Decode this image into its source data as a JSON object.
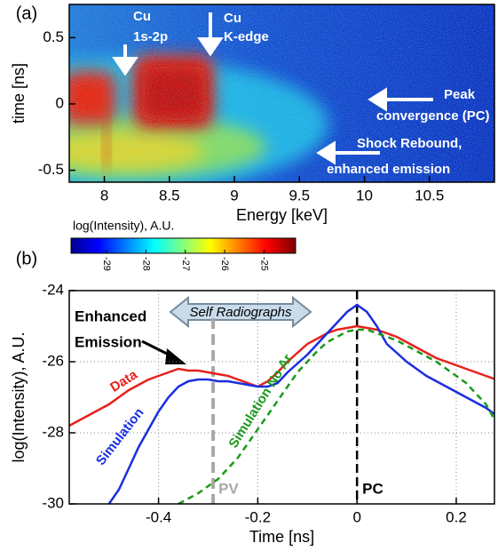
{
  "chart_data": [
    {
      "type": "heatmap",
      "label": "(a)",
      "xlabel": "Energy [keV]",
      "ylabel": "time [ns]",
      "xlim": [
        7.73,
        11.0
      ],
      "xticks": [
        8,
        8.5,
        9,
        9.5,
        10,
        10.5
      ],
      "ylim": [
        -0.59,
        0.75
      ],
      "yticks": [
        -0.5,
        0,
        0.5
      ],
      "colorbar": {
        "label": "log(Intensity), A.U.",
        "lim": [
          -29.9,
          -24.2
        ],
        "ticks": [
          -29,
          -28,
          -27,
          -26,
          -25
        ]
      },
      "annotations": [
        {
          "lines": [
            "Cu",
            "1s-2p"
          ]
        },
        {
          "lines": [
            "Cu",
            "K-edge"
          ]
        },
        {
          "lines": [
            "Peak",
            "convergence (PC)"
          ]
        },
        {
          "lines": [
            "Shock Rebound,",
            "enhanced emission"
          ]
        }
      ]
    },
    {
      "type": "line",
      "label": "(b)",
      "xlabel": "Time [ns]",
      "ylabel": "log(Intensity), A.U.",
      "xlim": [
        -0.58,
        0.277
      ],
      "xticks": [
        -0.4,
        -0.2,
        0,
        0.2
      ],
      "ylim": [
        -30,
        -24
      ],
      "yticks": [
        -30,
        -28,
        -26,
        -24
      ],
      "grid": true,
      "x": [
        -0.58,
        -0.56,
        -0.54,
        -0.52,
        -0.5,
        -0.48,
        -0.46,
        -0.44,
        -0.42,
        -0.4,
        -0.38,
        -0.36,
        -0.34,
        -0.32,
        -0.3,
        -0.28,
        -0.26,
        -0.24,
        -0.22,
        -0.2,
        -0.18,
        -0.16,
        -0.14,
        -0.12,
        -0.1,
        -0.08,
        -0.06,
        -0.04,
        -0.02,
        0,
        0.02,
        0.04,
        0.06,
        0.08,
        0.1,
        0.12,
        0.14,
        0.16,
        0.18,
        0.2,
        0.22,
        0.24,
        0.26,
        0.28
      ],
      "series": [
        {
          "name": "Data",
          "color": "#e8201a",
          "dash": false,
          "values": [
            -27.8,
            -27.65,
            -27.5,
            -27.35,
            -27.2,
            -27.0,
            -26.8,
            -26.65,
            -26.5,
            -26.4,
            -26.3,
            -26.2,
            -26.25,
            -26.25,
            -26.3,
            -26.35,
            -26.4,
            -26.5,
            -26.6,
            -26.7,
            -26.55,
            -26.3,
            -26.0,
            -25.75,
            -25.5,
            -25.35,
            -25.2,
            -25.1,
            -25.05,
            -25.0,
            -25.05,
            -25.1,
            -25.2,
            -25.3,
            -25.45,
            -25.6,
            -25.75,
            -25.9,
            -26.0,
            -26.1,
            -26.2,
            -26.3,
            -26.4,
            -26.5
          ]
        },
        {
          "name": "Simulation",
          "color": "#1a2ee0",
          "dash": false,
          "values": [
            null,
            null,
            null,
            null,
            -30,
            -29.6,
            -29.0,
            -28.4,
            -27.9,
            -27.4,
            -27.0,
            -26.7,
            -26.55,
            -26.5,
            -26.5,
            -26.55,
            -26.55,
            -26.6,
            -26.65,
            -26.7,
            -26.7,
            -26.6,
            -26.3,
            -26.05,
            -25.8,
            -25.5,
            -25.2,
            -24.9,
            -24.6,
            -24.4,
            -24.6,
            -25.0,
            -25.5,
            -25.75,
            -26.0,
            -26.2,
            -26.4,
            -26.55,
            -26.7,
            -26.85,
            -27.0,
            -27.15,
            -27.3,
            -27.5
          ]
        },
        {
          "name": "Simulation No Ar",
          "color": "#1a9a1a",
          "dash": true,
          "values": [
            null,
            null,
            null,
            null,
            null,
            null,
            null,
            null,
            null,
            null,
            null,
            -30,
            -29.85,
            -29.7,
            -29.5,
            -29.3,
            -29.0,
            -28.7,
            -28.3,
            -27.9,
            -27.5,
            -27.1,
            -26.7,
            -26.3,
            -26.0,
            -25.7,
            -25.45,
            -25.3,
            -25.15,
            -25.1,
            -25.1,
            -25.2,
            -25.3,
            -25.4,
            -25.55,
            -25.7,
            -25.85,
            -26.0,
            -26.2,
            -26.4,
            -26.6,
            -26.9,
            -27.2,
            -27.7
          ]
        }
      ],
      "vlines": [
        {
          "x": -0.29,
          "label": "PV",
          "color": "#a8a8a8"
        },
        {
          "x": 0,
          "label": "PC",
          "color": "#000000"
        }
      ],
      "annotations": [
        {
          "lines": [
            "Enhanced",
            "Emission"
          ]
        },
        {
          "text": "Self Radiographs"
        }
      ]
    }
  ]
}
